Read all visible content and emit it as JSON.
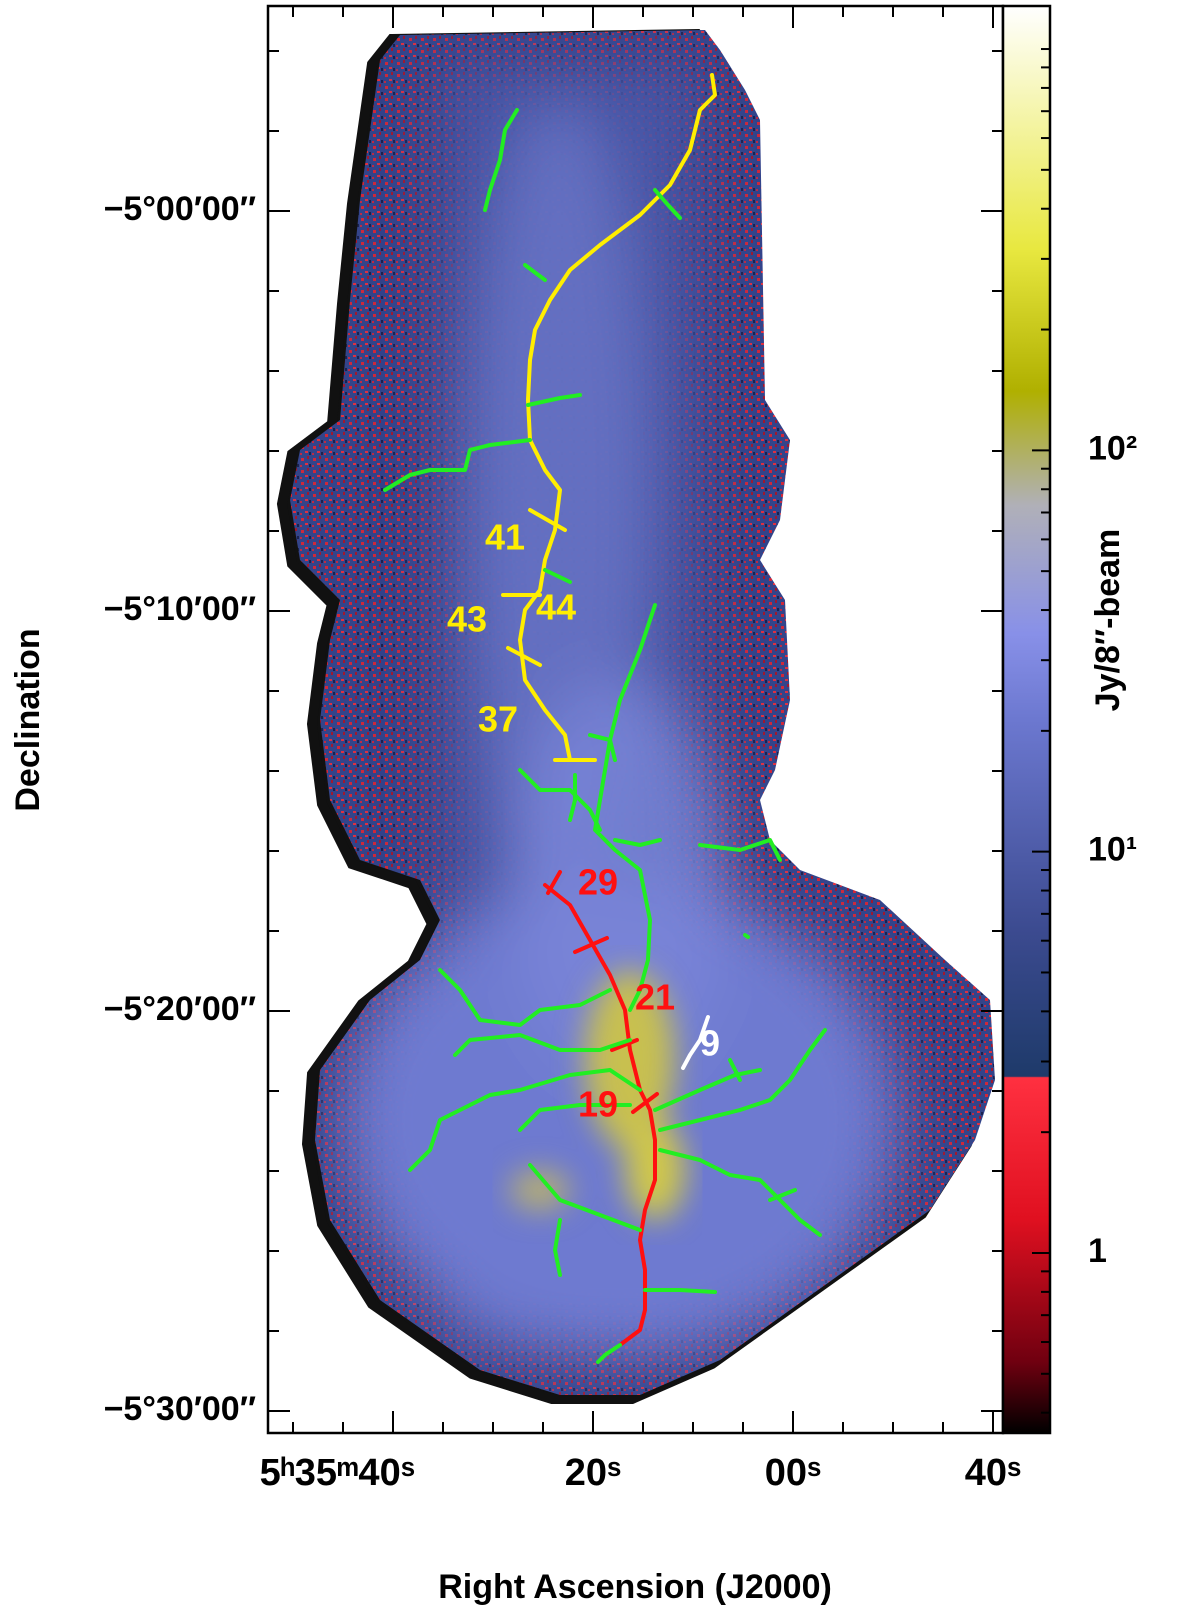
{
  "chart_data": {
    "type": "map",
    "xlabel": "Right Ascension (J2000)",
    "ylabel": "Declination",
    "xlim": [
      20152.5,
      20079
    ],
    "ylim": [
      -330.55,
      -294.875
    ],
    "xticks": [
      {
        "value": 20140,
        "label": "5ʰ35ᵐ40ˢ"
      },
      {
        "value": 20120,
        "label": "20ˢ"
      },
      {
        "value": 20100,
        "label": "00ˢ"
      },
      {
        "value": 20080,
        "label": "40ˢ"
      }
    ],
    "xticks_minor": [
      20150,
      20145,
      20135,
      20130,
      20125,
      20115,
      20110,
      20105,
      20095,
      20090,
      20085
    ],
    "yticks": [
      {
        "value": -300,
        "label": "−5°00′00″"
      },
      {
        "value": -310,
        "label": "−5°10′00″"
      },
      {
        "value": -320,
        "label": "−5°20′00″"
      },
      {
        "value": -330,
        "label": "−5°30′00″"
      }
    ],
    "yticks_minor": [
      -296,
      -298,
      -302,
      -304,
      -306,
      -308,
      -312,
      -314,
      -316,
      -318,
      -322,
      -324,
      -326,
      -328
    ],
    "colorbar": {
      "label": "Jy/8″-beam",
      "log_scale": true,
      "lim": [
        0.356,
        1280
      ],
      "ticks": [
        1,
        {
          "value": 10,
          "label": "10¹"
        },
        {
          "value": 100,
          "label": "10²"
        }
      ],
      "minor_ticks": [
        0.4,
        0.5,
        0.6,
        0.7,
        0.8,
        0.9,
        2,
        3,
        4,
        5,
        6,
        7,
        8,
        9,
        20,
        30,
        40,
        50,
        60,
        70,
        80,
        90,
        200,
        300,
        400,
        500,
        600,
        700,
        800,
        900,
        1000
      ]
    },
    "annotations": [
      {
        "text": "41",
        "color": "#ffee00"
      },
      {
        "text": "44",
        "color": "#ffee00"
      },
      {
        "text": "43",
        "color": "#ffee00"
      },
      {
        "text": "37",
        "color": "#ffee00"
      },
      {
        "text": "29",
        "color": "#ff1010"
      },
      {
        "text": "21",
        "color": "#ff1010"
      },
      {
        "text": "19",
        "color": "#ff1010"
      },
      {
        "text": "9",
        "color": "#ffffff"
      }
    ]
  }
}
